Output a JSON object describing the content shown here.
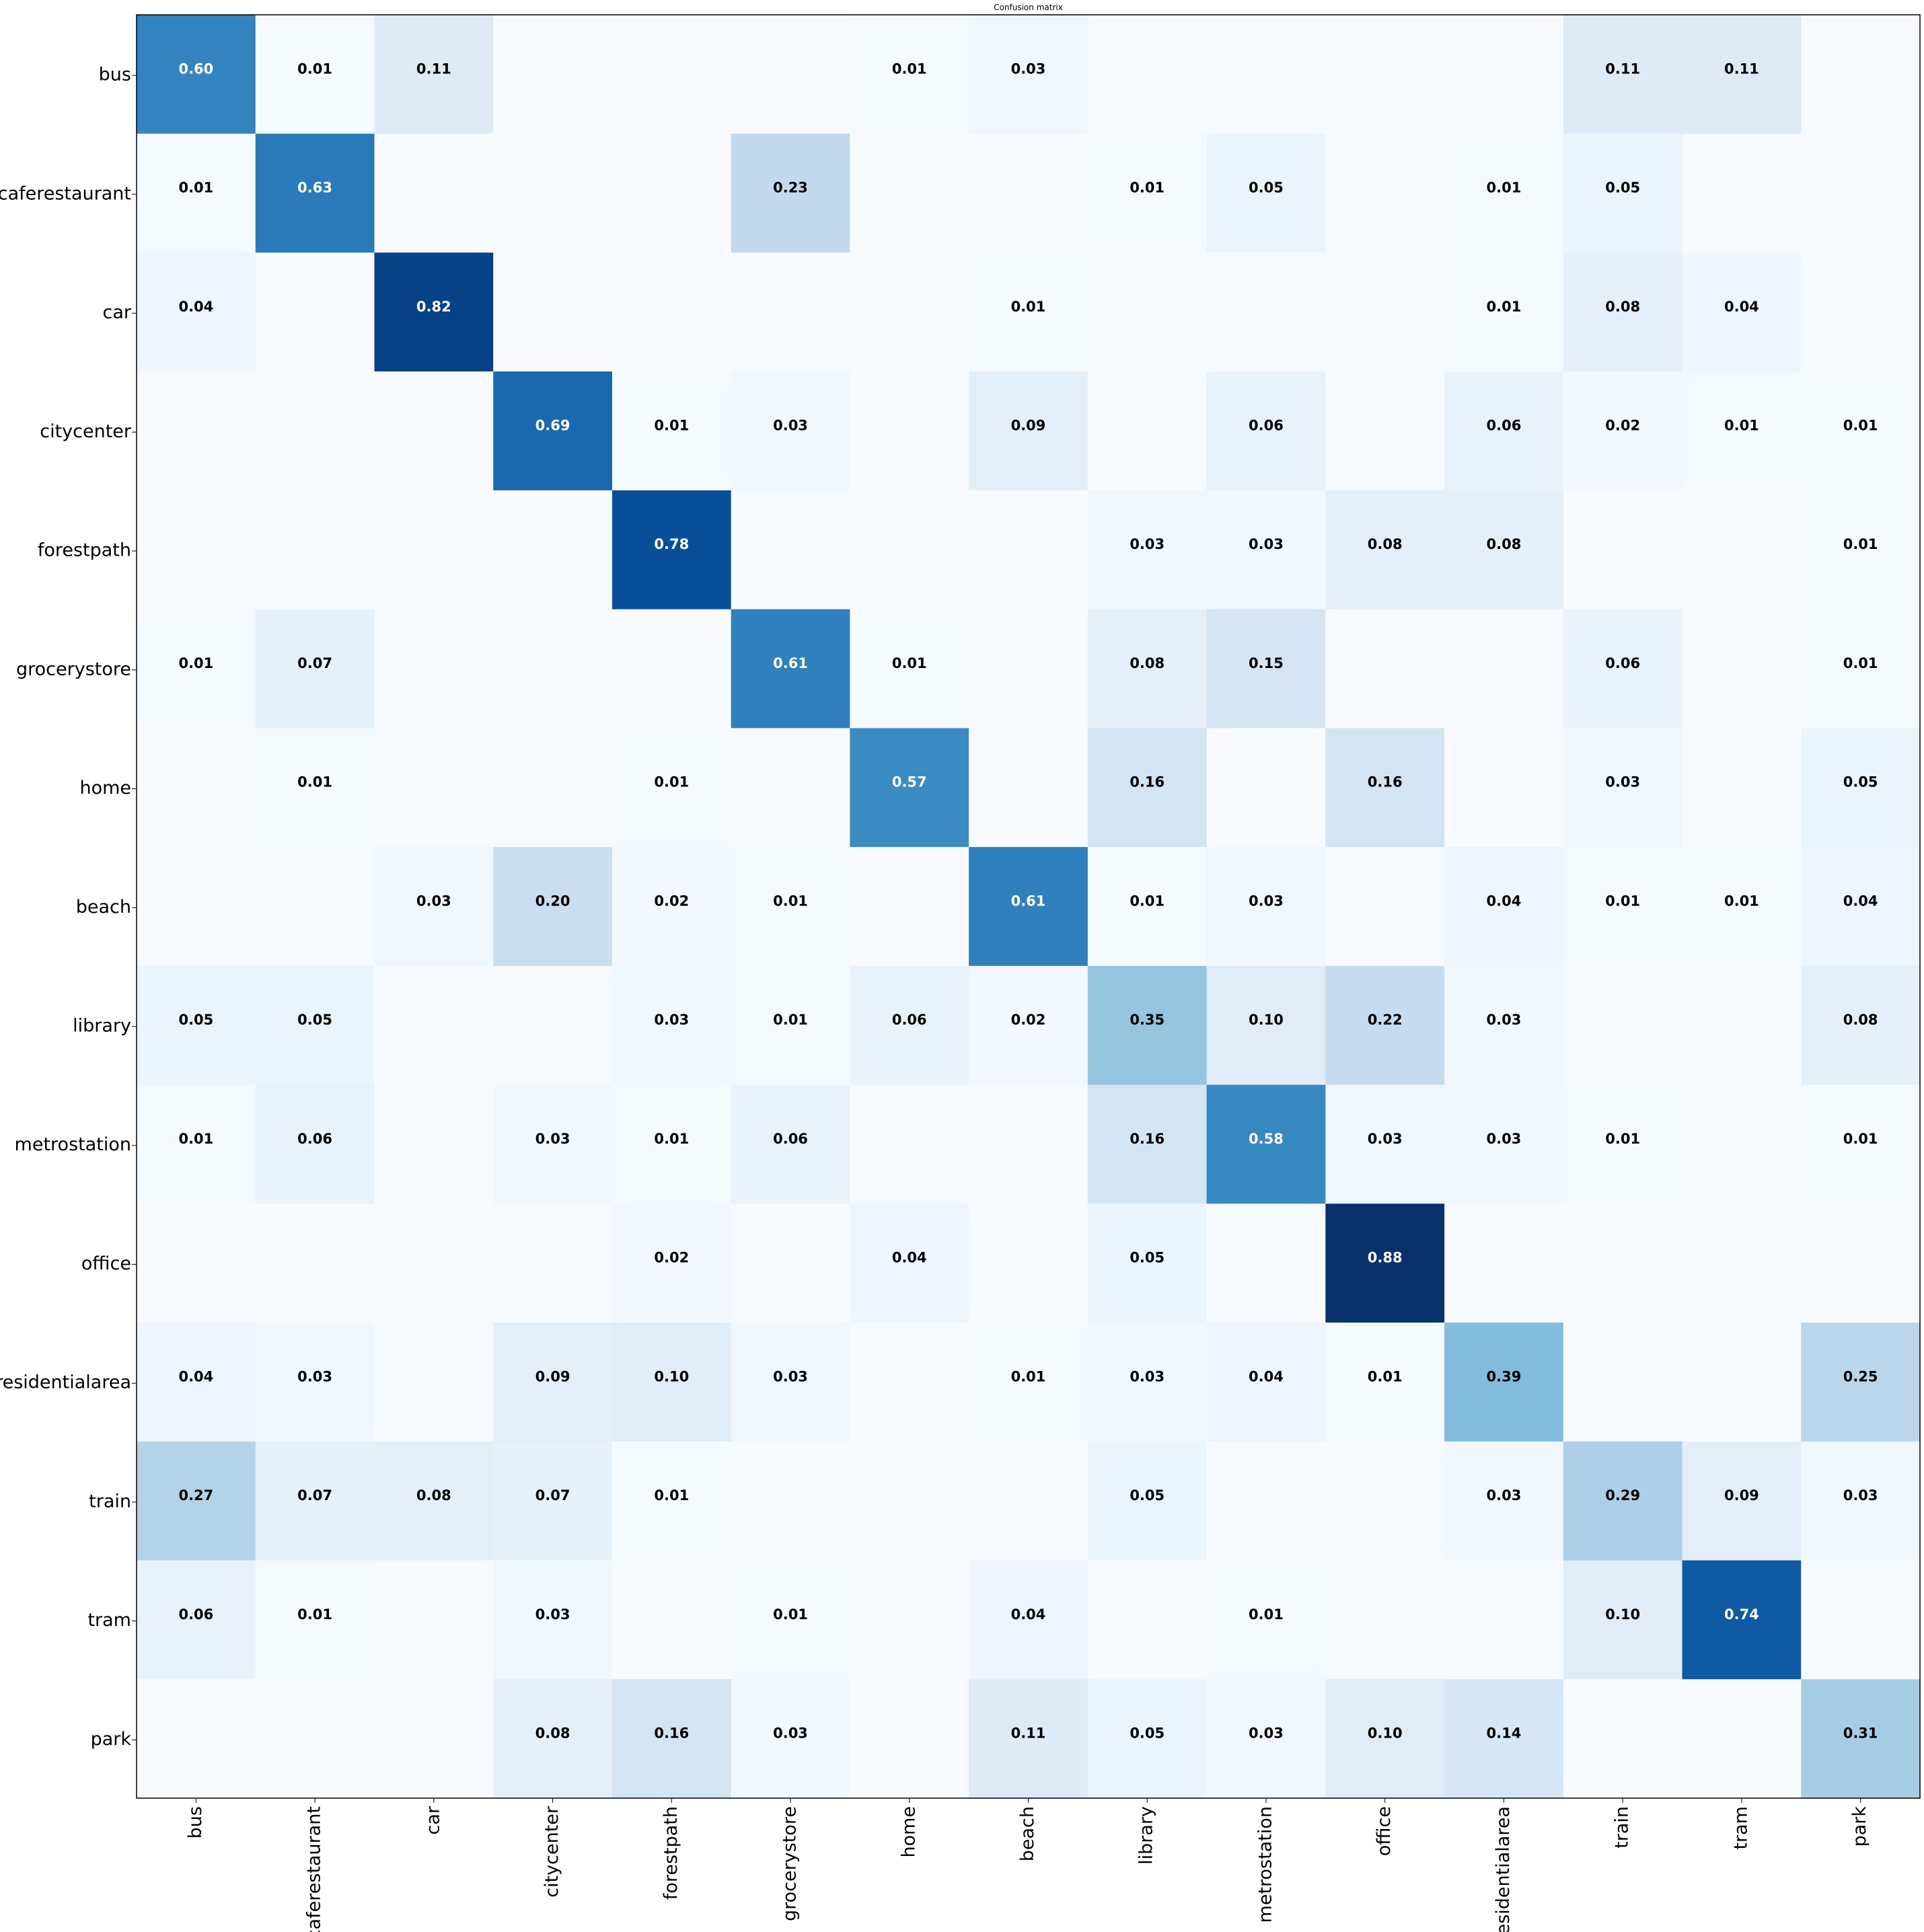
{
  "chart_data": {
    "type": "heatmap",
    "title": "Confusion matrix",
    "xlabel": "",
    "ylabel": "",
    "colormap": "Blues",
    "row_labels": [
      "bus",
      "caferestaurant",
      "car",
      "citycenter",
      "forestpath",
      "grocerystore",
      "home",
      "beach",
      "library",
      "metrostation",
      "office",
      "residentialarea",
      "train",
      "tram",
      "park"
    ],
    "col_labels": [
      "bus",
      "caferestaurant",
      "car",
      "citycenter",
      "forestpath",
      "grocerystore",
      "home",
      "beach",
      "library",
      "metrostation",
      "office",
      "residentialarea",
      "train",
      "tram",
      "park"
    ],
    "values": [
      [
        0.6,
        0.01,
        0.11,
        null,
        null,
        null,
        0.01,
        0.03,
        null,
        null,
        null,
        null,
        0.11,
        0.11,
        null
      ],
      [
        0.01,
        0.63,
        null,
        null,
        null,
        0.23,
        null,
        null,
        0.01,
        0.05,
        null,
        0.01,
        0.05,
        null,
        null
      ],
      [
        0.04,
        null,
        0.82,
        null,
        null,
        null,
        null,
        0.01,
        null,
        null,
        null,
        0.01,
        0.08,
        0.04,
        null
      ],
      [
        null,
        null,
        null,
        0.69,
        0.01,
        0.03,
        null,
        0.09,
        null,
        0.06,
        null,
        0.06,
        0.02,
        0.01,
        0.01
      ],
      [
        null,
        null,
        null,
        null,
        0.78,
        null,
        null,
        null,
        0.03,
        0.03,
        0.08,
        0.08,
        null,
        null,
        0.01
      ],
      [
        0.01,
        0.07,
        null,
        null,
        null,
        0.61,
        0.01,
        null,
        0.08,
        0.15,
        null,
        null,
        0.06,
        null,
        0.01
      ],
      [
        null,
        0.01,
        null,
        null,
        0.01,
        null,
        0.57,
        null,
        0.16,
        null,
        0.16,
        null,
        0.03,
        null,
        0.05
      ],
      [
        null,
        null,
        0.03,
        0.2,
        0.02,
        0.01,
        null,
        0.61,
        0.01,
        0.03,
        null,
        0.04,
        0.01,
        0.01,
        0.04
      ],
      [
        0.05,
        0.05,
        null,
        null,
        0.03,
        0.01,
        0.06,
        0.02,
        0.35,
        0.1,
        0.22,
        0.03,
        null,
        null,
        0.08
      ],
      [
        0.01,
        0.06,
        null,
        0.03,
        0.01,
        0.06,
        null,
        null,
        0.16,
        0.58,
        0.03,
        0.03,
        0.01,
        null,
        0.01
      ],
      [
        null,
        null,
        null,
        null,
        0.02,
        null,
        0.04,
        null,
        0.05,
        null,
        0.88,
        null,
        null,
        null,
        null
      ],
      [
        0.04,
        0.03,
        null,
        0.09,
        0.1,
        0.03,
        null,
        0.01,
        0.03,
        0.04,
        0.01,
        0.39,
        null,
        null,
        0.25
      ],
      [
        0.27,
        0.07,
        0.08,
        0.07,
        0.01,
        null,
        null,
        null,
        0.05,
        null,
        null,
        0.03,
        0.29,
        0.09,
        0.03
      ],
      [
        0.06,
        0.01,
        null,
        0.03,
        null,
        0.01,
        null,
        0.04,
        null,
        0.01,
        null,
        null,
        0.1,
        0.74,
        null
      ],
      [
        null,
        null,
        null,
        0.08,
        0.16,
        0.03,
        null,
        0.11,
        0.05,
        0.03,
        0.1,
        0.14,
        null,
        null,
        0.31
      ]
    ],
    "vmin": 0,
    "vmax": 0.88,
    "grid": false,
    "legend": "none"
  }
}
